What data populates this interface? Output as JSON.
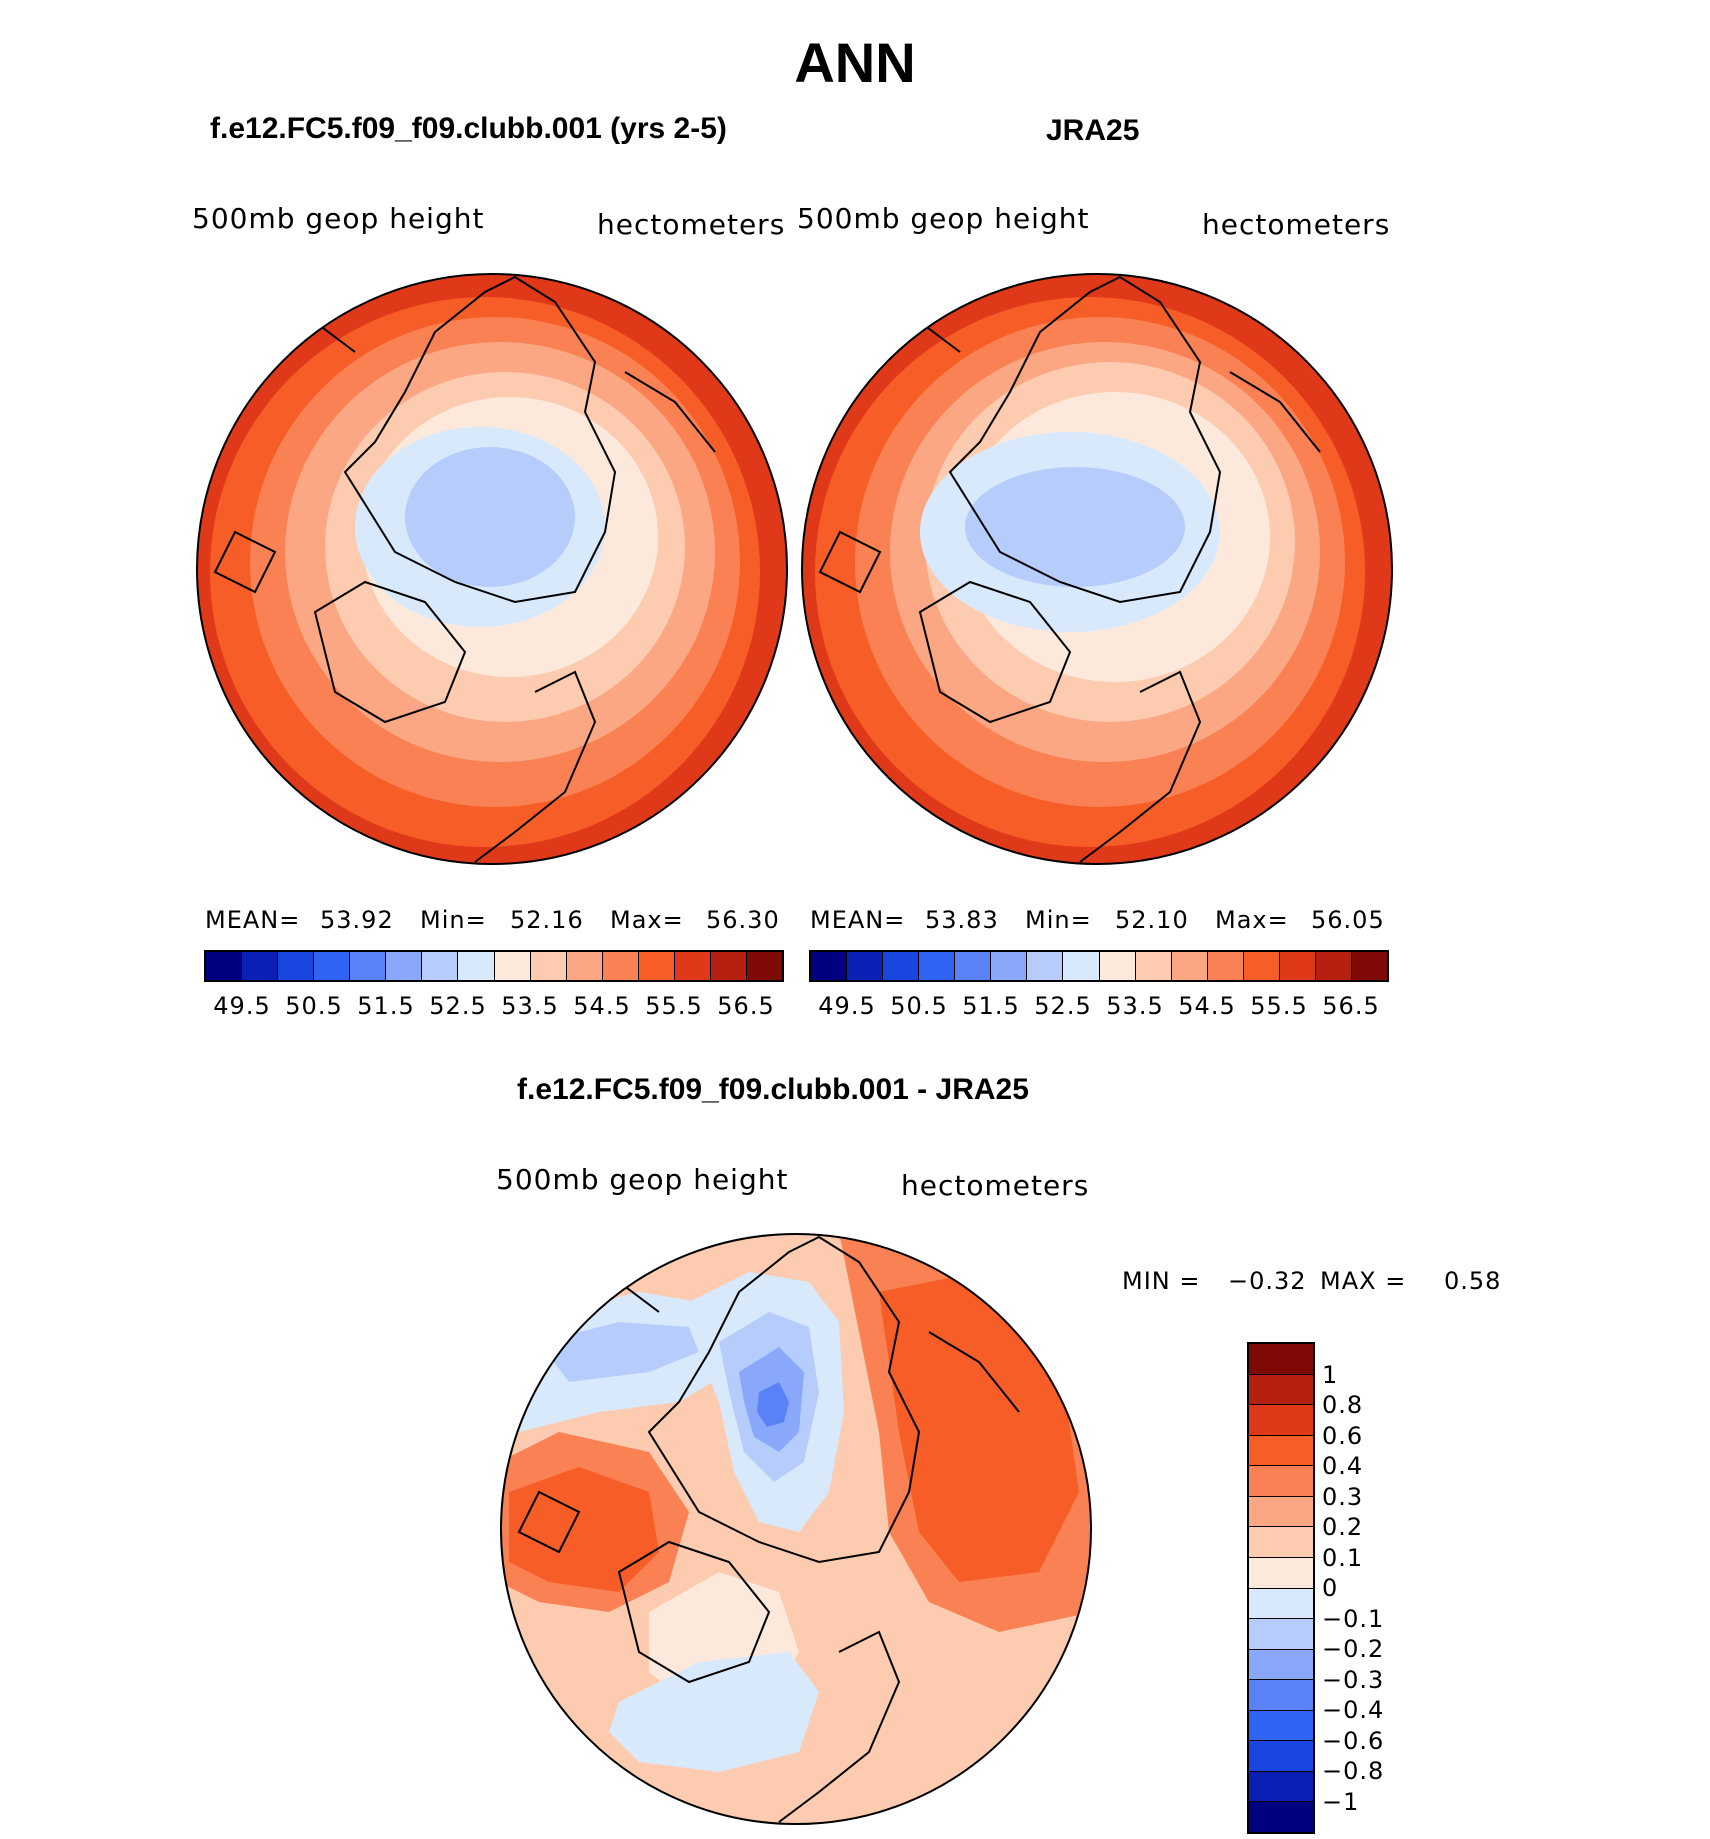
{
  "title": "ANN",
  "panels": [
    {
      "id": "model",
      "title": "f.e12.FC5.f09_f09.clubb.001 (yrs 2-5)",
      "variable": "500mb  geop  height",
      "units": "hectometers",
      "stats": {
        "mean_label": "MEAN=",
        "mean": "53.92",
        "min_label": "Min=",
        "min": "52.16",
        "max_label": "Max=",
        "max": "56.30"
      }
    },
    {
      "id": "obs",
      "title": "JRA25",
      "variable": "500mb  geop  height",
      "units": "hectometers",
      "stats": {
        "mean_label": "MEAN=",
        "mean": "53.83",
        "min_label": "Min=",
        "min": "52.10",
        "max_label": "Max=",
        "max": "56.05"
      }
    }
  ],
  "abs_colorbar": {
    "colors": [
      "#000080",
      "#0a1fb4",
      "#1a46e0",
      "#2f63f2",
      "#5a82f7",
      "#8aa8fa",
      "#b6cdfb",
      "#d9e9fc",
      "#fde9dc",
      "#fccbb0",
      "#fba784",
      "#f98154",
      "#f75d27",
      "#e0391a",
      "#b52010",
      "#7f0a05"
    ],
    "ticks": [
      "49.5",
      "50.5",
      "51.5",
      "52.5",
      "53.5",
      "54.5",
      "55.5",
      "56.5"
    ]
  },
  "diff_panel": {
    "title": "f.e12.FC5.f09_f09.clubb.001 - JRA25",
    "variable": "500mb  geop  height",
    "units": "hectometers",
    "stats": {
      "min_label": "MIN =",
      "min": "−0.32",
      "max_label": "MAX =",
      "max": "0.58"
    }
  },
  "diff_colorbar": {
    "colors": [
      "#7f0a05",
      "#b52010",
      "#e0391a",
      "#f75d27",
      "#f98154",
      "#fba784",
      "#fccbb0",
      "#fde9dc",
      "#d9e9fc",
      "#b6cdfb",
      "#8aa8fa",
      "#5a82f7",
      "#2f63f2",
      "#1a46e0",
      "#0a1fb4",
      "#000080"
    ],
    "ticks": [
      "1",
      "0.8",
      "0.6",
      "0.4",
      "0.3",
      "0.2",
      "0.1",
      "0",
      "−0.1",
      "−0.2",
      "−0.3",
      "−0.4",
      "−0.6",
      "−0.8",
      "−1"
    ]
  }
}
